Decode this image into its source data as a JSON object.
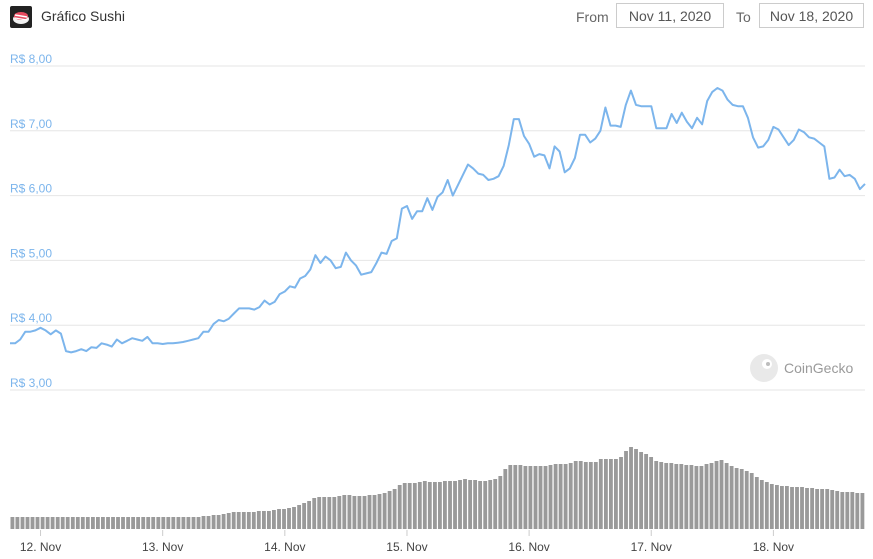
{
  "header": {
    "title": "Gráfico Sushi",
    "from_label": "From",
    "from_date": "Nov 11, 2020",
    "to_label": "To",
    "to_date": "Nov 18, 2020"
  },
  "watermark": "CoinGecko",
  "colors": {
    "line": "#7cb5ec",
    "bar": "#9a9a9a",
    "grid": "#e6e6e6"
  },
  "chart_data": {
    "type": "line",
    "ylim": [
      3.0,
      8.0
    ],
    "y_ticks": [
      "R$ 3,00",
      "R$ 4,00",
      "R$ 5,00",
      "R$ 6,00",
      "R$ 7,00",
      "R$ 8,00"
    ],
    "x_ticks": [
      "12. Nov",
      "13. Nov",
      "14. Nov",
      "15. Nov",
      "16. Nov",
      "17. Nov",
      "18. Nov"
    ],
    "price_series": {
      "x_start": "Nov 11, 2020 18:00",
      "interval_hours": 1,
      "values": [
        3.72,
        3.72,
        3.78,
        3.9,
        3.9,
        3.92,
        3.96,
        3.92,
        3.86,
        3.92,
        3.87,
        3.6,
        3.58,
        3.6,
        3.63,
        3.6,
        3.66,
        3.65,
        3.72,
        3.7,
        3.67,
        3.78,
        3.72,
        3.76,
        3.8,
        3.78,
        3.76,
        3.82,
        3.72,
        3.72,
        3.71,
        3.72,
        3.72,
        3.73,
        3.74,
        3.76,
        3.78,
        3.8,
        3.9,
        3.9,
        4.02,
        4.08,
        4.06,
        4.1,
        4.18,
        4.26,
        4.26,
        4.26,
        4.24,
        4.28,
        4.38,
        4.32,
        4.36,
        4.48,
        4.52,
        4.6,
        4.58,
        4.72,
        4.76,
        4.86,
        5.08,
        4.96,
        5.06,
        5.0,
        4.88,
        4.9,
        5.12,
        5.0,
        4.92,
        4.78,
        4.8,
        4.82,
        4.96,
        5.12,
        5.1,
        5.3,
        5.34,
        5.8,
        5.84,
        5.64,
        5.76,
        5.76,
        5.96,
        5.78,
        5.98,
        6.05,
        6.24,
        6.0,
        6.16,
        6.32,
        6.48,
        6.42,
        6.34,
        6.32,
        6.24,
        6.26,
        6.3,
        6.46,
        6.78,
        7.18,
        7.18,
        6.92,
        6.8,
        6.6,
        6.64,
        6.62,
        6.42,
        6.76,
        6.68,
        6.36,
        6.42,
        6.58,
        6.94,
        6.94,
        6.82,
        6.88,
        7.0,
        7.36,
        7.08,
        7.08,
        7.06,
        7.4,
        7.62,
        7.4,
        7.38,
        7.38,
        7.38,
        7.04,
        7.04,
        7.04,
        7.26,
        7.12,
        7.28,
        7.14,
        7.04,
        7.2,
        7.1,
        7.46,
        7.6,
        7.66,
        7.62,
        7.48,
        7.4,
        7.38,
        7.38,
        7.2,
        6.9,
        6.74,
        6.76,
        6.86,
        7.06,
        7.02,
        6.9,
        6.78,
        6.86,
        7.02,
        6.98,
        6.9,
        6.88,
        6.82,
        6.76,
        6.26,
        6.28,
        6.4,
        6.3,
        6.32,
        6.26,
        6.1,
        6.18
      ]
    },
    "volume_series": {
      "unit": "relative",
      "values": [
        12,
        12,
        12,
        12,
        12,
        12,
        12,
        12,
        12,
        12,
        12,
        12,
        12,
        12,
        12,
        12,
        12,
        12,
        12,
        12,
        12,
        12,
        12,
        12,
        12,
        12,
        12,
        12,
        12,
        12,
        12,
        12,
        12,
        12,
        12,
        12,
        12,
        12,
        13,
        13,
        14,
        14,
        15,
        16,
        17,
        17,
        17,
        17,
        17,
        18,
        18,
        18,
        19,
        20,
        20,
        21,
        22,
        24,
        26,
        28,
        31,
        32,
        32,
        32,
        32,
        33,
        34,
        34,
        33,
        33,
        33,
        34,
        34,
        35,
        36,
        38,
        40,
        44,
        46,
        46,
        46,
        47,
        48,
        47,
        47,
        47,
        48,
        48,
        48,
        49,
        50,
        49,
        49,
        48,
        48,
        49,
        50,
        53,
        60,
        64,
        64,
        64,
        63,
        63,
        63,
        63,
        63,
        64,
        65,
        65,
        65,
        66,
        68,
        68,
        67,
        67,
        67,
        70,
        70,
        70,
        70,
        72,
        78,
        82,
        80,
        77,
        75,
        72,
        68,
        67,
        66,
        66,
        65,
        65,
        64,
        64,
        63,
        63,
        65,
        66,
        68,
        69,
        66,
        63,
        61,
        60,
        58,
        56,
        52,
        49,
        47,
        45,
        44,
        43,
        43,
        42,
        42,
        42,
        41,
        41,
        40,
        40,
        40,
        39,
        38,
        37,
        37,
        37,
        36,
        36
      ]
    }
  }
}
